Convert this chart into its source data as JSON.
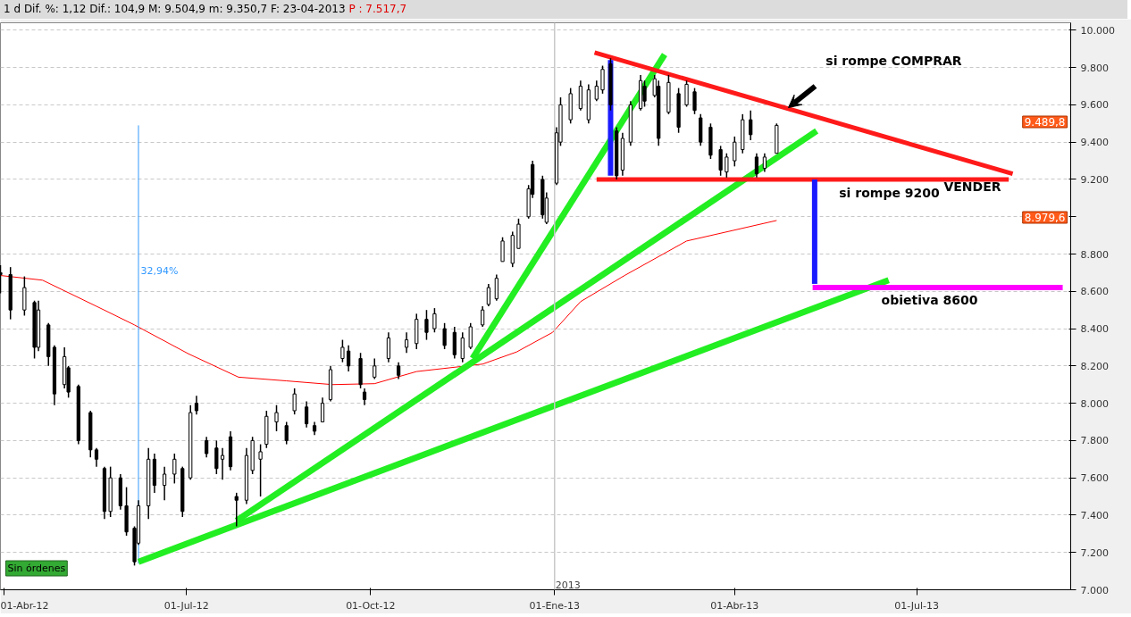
{
  "chart_data": {
    "type": "candlestick",
    "title": "1 d Dif. %: 1,12 Dif.: 104,9 M: 9.504,9 m: 9.350,7 F: 23-04-2013",
    "subtitle": "P : 7.517,7",
    "xlim": [
      "2012-03-30",
      "2013-09-16"
    ],
    "xticks": [
      {
        "value": "2012-04-01",
        "label": "01-Abr-12"
      },
      {
        "value": "2012-07-01",
        "label": "01-Jul-12"
      },
      {
        "value": "2012-10-01",
        "label": "01-Oct-12"
      },
      {
        "value": "2013-01-01",
        "label": "01-Ene-13"
      },
      {
        "value": "2013-04-01",
        "label": "01-Abr-13"
      },
      {
        "value": "2013-07-01",
        "label": "01-Jul-13"
      }
    ],
    "ylim": [
      7000,
      10040
    ],
    "yticks": [
      {
        "value": 7000,
        "label": "7.000"
      },
      {
        "value": 7200,
        "label": "7.200"
      },
      {
        "value": 7400,
        "label": "7.400"
      },
      {
        "value": 7600,
        "label": "7.600"
      },
      {
        "value": 7800,
        "label": "7.800"
      },
      {
        "value": 8000,
        "label": "8.000"
      },
      {
        "value": 8200,
        "label": "8.200"
      },
      {
        "value": 8400,
        "label": "8.400"
      },
      {
        "value": 8600,
        "label": "8.600"
      },
      {
        "value": 8800,
        "label": "8.800"
      },
      {
        "value": 9000,
        "label": null
      },
      {
        "value": 9200,
        "label": "9.200"
      },
      {
        "value": 9400,
        "label": "9.400"
      },
      {
        "value": 9600,
        "label": "9.600"
      },
      {
        "value": 9800,
        "label": "9.800"
      },
      {
        "value": 10000,
        "label": "10.000"
      }
    ],
    "grid": true,
    "ref_lines": [
      {
        "axis": "x",
        "value": "2013-01-01",
        "label": "2013",
        "color": "#c8c8c8"
      }
    ],
    "series": [
      {
        "color": "#000000",
        "x": [
          "2012-03-30",
          "2012-04-04",
          "2012-04-11",
          "2012-04-16",
          "2012-04-18",
          "2012-04-23",
          "2012-04-26",
          "2012-05-01",
          "2012-05-03",
          "2012-05-08",
          "2012-05-14",
          "2012-05-17",
          "2012-05-21",
          "2012-05-24",
          "2012-05-29",
          "2012-06-01",
          "2012-06-05",
          "2012-06-07",
          "2012-06-12",
          "2012-06-15",
          "2012-06-20",
          "2012-06-25",
          "2012-06-29",
          "2012-07-03",
          "2012-07-06",
          "2012-07-11",
          "2012-07-16",
          "2012-07-19",
          "2012-07-23",
          "2012-07-26",
          "2012-07-31",
          "2012-08-03",
          "2012-08-07",
          "2012-08-10",
          "2012-08-15",
          "2012-08-20",
          "2012-08-24",
          "2012-08-30",
          "2012-09-03",
          "2012-09-07",
          "2012-09-11",
          "2012-09-17",
          "2012-09-20",
          "2012-09-26",
          "2012-09-28",
          "2012-10-03",
          "2012-10-10",
          "2012-10-15",
          "2012-10-19",
          "2012-10-24",
          "2012-10-29",
          "2012-11-02",
          "2012-11-07",
          "2012-11-12",
          "2012-11-16",
          "2012-11-20",
          "2012-11-26",
          "2012-11-29",
          "2012-12-03",
          "2012-12-06",
          "2012-12-11",
          "2012-12-14",
          "2012-12-19",
          "2012-12-21",
          "2012-12-26",
          "2012-12-28",
          "2013-01-02",
          "2013-01-04",
          "2013-01-09",
          "2013-01-14",
          "2013-01-18",
          "2013-01-22",
          "2013-01-25",
          "2013-01-29",
          "2013-02-01",
          "2013-02-04",
          "2013-02-08",
          "2013-02-13",
          "2013-02-15",
          "2013-02-20",
          "2013-02-22",
          "2013-02-27",
          "2013-03-04",
          "2013-03-08",
          "2013-03-12",
          "2013-03-15",
          "2013-03-20",
          "2013-03-25",
          "2013-03-28",
          "2013-04-01",
          "2013-04-05",
          "2013-04-09",
          "2013-04-12",
          "2013-04-16",
          "2013-04-22"
        ],
        "ohlc": [
          [
            8700,
            8740,
            8590,
            8690
          ],
          [
            8690,
            8730,
            8450,
            8500
          ],
          [
            8500,
            8680,
            8470,
            8620
          ],
          [
            8540,
            8550,
            8240,
            8300
          ],
          [
            8300,
            8550,
            8280,
            8500
          ],
          [
            8420,
            8430,
            8200,
            8250
          ],
          [
            8300,
            8310,
            7990,
            8050
          ],
          [
            8100,
            8300,
            8080,
            8250
          ],
          [
            8190,
            8200,
            8030,
            8060
          ],
          [
            8090,
            8100,
            7780,
            7800
          ],
          [
            7950,
            7960,
            7710,
            7750
          ],
          [
            7750,
            7760,
            7660,
            7700
          ],
          [
            7650,
            7660,
            7380,
            7420
          ],
          [
            7420,
            7660,
            7390,
            7600
          ],
          [
            7600,
            7620,
            7430,
            7450
          ],
          [
            7450,
            7550,
            7290,
            7310
          ],
          [
            7330,
            7340,
            7130,
            7150
          ],
          [
            7250,
            7480,
            7240,
            7450
          ],
          [
            7450,
            7760,
            7380,
            7700
          ],
          [
            7700,
            7730,
            7520,
            7560
          ],
          [
            7560,
            7660,
            7480,
            7620
          ],
          [
            7620,
            7730,
            7570,
            7700
          ],
          [
            7650,
            7660,
            7390,
            7420
          ],
          [
            7600,
            7990,
            7590,
            7950
          ],
          [
            8000,
            8040,
            7940,
            7960
          ],
          [
            7800,
            7820,
            7710,
            7730
          ],
          [
            7760,
            7800,
            7620,
            7650
          ],
          [
            7700,
            7760,
            7590,
            7720
          ],
          [
            7820,
            7850,
            7640,
            7660
          ],
          [
            7500,
            7520,
            7340,
            7480
          ],
          [
            7480,
            7760,
            7460,
            7720
          ],
          [
            7640,
            7820,
            7620,
            7800
          ],
          [
            7700,
            7780,
            7500,
            7740
          ],
          [
            7780,
            7960,
            7760,
            7930
          ],
          [
            7900,
            7990,
            7850,
            7950
          ],
          [
            7880,
            7900,
            7780,
            7800
          ],
          [
            7960,
            8080,
            7940,
            8050
          ],
          [
            7980,
            8010,
            7870,
            7890
          ],
          [
            7880,
            7900,
            7830,
            7850
          ],
          [
            7900,
            8030,
            7900,
            8000
          ],
          [
            8020,
            8200,
            8010,
            8180
          ],
          [
            8240,
            8340,
            8220,
            8300
          ],
          [
            8280,
            8310,
            8170,
            8200
          ],
          [
            8240,
            8270,
            8080,
            8100
          ],
          [
            8060,
            8080,
            7990,
            8020
          ],
          [
            8140,
            8240,
            8130,
            8200
          ],
          [
            8240,
            8380,
            8220,
            8350
          ],
          [
            8200,
            8220,
            8130,
            8150
          ],
          [
            8300,
            8380,
            8270,
            8340
          ],
          [
            8320,
            8480,
            8290,
            8450
          ],
          [
            8450,
            8500,
            8340,
            8380
          ],
          [
            8400,
            8510,
            8380,
            8480
          ],
          [
            8400,
            8430,
            8290,
            8310
          ],
          [
            8380,
            8410,
            8240,
            8260
          ],
          [
            8240,
            8380,
            8220,
            8350
          ],
          [
            8300,
            8430,
            8290,
            8410
          ],
          [
            8420,
            8520,
            8410,
            8500
          ],
          [
            8530,
            8640,
            8520,
            8620
          ],
          [
            8560,
            8690,
            8550,
            8670
          ],
          [
            8760,
            8890,
            8760,
            8870
          ],
          [
            8750,
            8920,
            8730,
            8900
          ],
          [
            8830,
            8990,
            8830,
            8960
          ],
          [
            9000,
            9170,
            8990,
            9150
          ],
          [
            9280,
            9300,
            9100,
            9120
          ],
          [
            9200,
            9220,
            8990,
            9010
          ],
          [
            8970,
            9130,
            8960,
            9100
          ],
          [
            9180,
            9480,
            9170,
            9450
          ],
          [
            9400,
            9640,
            9380,
            9600
          ],
          [
            9520,
            9690,
            9500,
            9660
          ],
          [
            9580,
            9730,
            9570,
            9700
          ],
          [
            9520,
            9710,
            9500,
            9680
          ],
          [
            9630,
            9730,
            9620,
            9700
          ],
          [
            9680,
            9810,
            9660,
            9790
          ],
          [
            9820,
            9850,
            9570,
            9600
          ],
          [
            9460,
            9480,
            9200,
            9220
          ],
          [
            9250,
            9450,
            9220,
            9420
          ],
          [
            9400,
            9620,
            9380,
            9600
          ],
          [
            9580,
            9760,
            9570,
            9730
          ],
          [
            9700,
            9730,
            9590,
            9620
          ],
          [
            9650,
            9760,
            9640,
            9740
          ],
          [
            9700,
            9730,
            9380,
            9420
          ],
          [
            9560,
            9760,
            9550,
            9720
          ],
          [
            9660,
            9690,
            9450,
            9480
          ],
          [
            9600,
            9730,
            9590,
            9710
          ],
          [
            9670,
            9690,
            9550,
            9570
          ],
          [
            9530,
            9550,
            9380,
            9400
          ],
          [
            9480,
            9500,
            9310,
            9330
          ],
          [
            9360,
            9380,
            9220,
            9250
          ],
          [
            9240,
            9340,
            9210,
            9320
          ],
          [
            9300,
            9430,
            9270,
            9400
          ],
          [
            9360,
            9550,
            9340,
            9520
          ],
          [
            9520,
            9570,
            9410,
            9440
          ],
          [
            9320,
            9340,
            9210,
            9230
          ],
          [
            9260,
            9340,
            9240,
            9320
          ],
          [
            9340,
            9500,
            9340,
            9490
          ]
        ]
      },
      {
        "type": "line",
        "color": "#ff0000",
        "x": [
          "2012-03-30",
          "2012-04-20",
          "2012-05-17",
          "2012-06-05",
          "2012-07-02",
          "2012-07-27",
          "2012-08-20",
          "2012-09-12",
          "2012-10-03",
          "2012-10-24",
          "2012-11-26",
          "2012-12-13",
          "2012-12-31",
          "2013-01-14",
          "2013-02-05",
          "2013-03-08",
          "2013-04-22"
        ],
        "values": [
          8685,
          8660,
          8520,
          8420,
          8265,
          8140,
          8120,
          8100,
          8105,
          8170,
          8210,
          8275,
          8380,
          8545,
          8685,
          8870,
          8980
        ]
      },
      {
        "type": "line",
        "color": "#3399ff",
        "x": [
          "2012-06-07",
          "2012-06-07"
        ],
        "values": [
          7140,
          9490
        ]
      },
      {
        "type": "line",
        "color": "#22ee22",
        "x": [
          "2012-06-07",
          "2013-06-17"
        ],
        "values": [
          7150,
          8660
        ]
      },
      {
        "type": "line",
        "color": "#22ee22",
        "x": [
          "2012-07-26",
          "2013-05-12"
        ],
        "values": [
          7370,
          9460
        ]
      },
      {
        "type": "line",
        "color": "#22ee22",
        "x": [
          "2012-11-21",
          "2013-02-25"
        ],
        "values": [
          8240,
          9870
        ]
      },
      {
        "type": "line",
        "color": "#ff1a1a",
        "x": [
          "2013-01-21",
          "2013-08-18"
        ],
        "values": [
          9880,
          9230
        ]
      },
      {
        "type": "line",
        "color": "#ff1a1a",
        "x": [
          "2013-01-22",
          "2013-08-16"
        ],
        "values": [
          9200,
          9200
        ]
      },
      {
        "type": "line",
        "color": "#1a1aff",
        "x": [
          "2013-01-29",
          "2013-01-29"
        ],
        "values": [
          9840,
          9220
        ]
      },
      {
        "type": "line",
        "color": "#1a1aff",
        "x": [
          "2013-05-11",
          "2013-05-11"
        ],
        "values": [
          9200,
          8640
        ]
      },
      {
        "type": "line",
        "color": "#ff00ff",
        "x": [
          "2013-05-10",
          "2013-09-12"
        ],
        "values": [
          8620,
          8620
        ]
      }
    ],
    "annotations": [
      "32,94%",
      "si rompe COMPRAR",
      "si rompe 9200",
      "VENDER",
      "obietiva 8600",
      "9.489,8",
      "8.979,6",
      "Sin órdenes"
    ]
  }
}
